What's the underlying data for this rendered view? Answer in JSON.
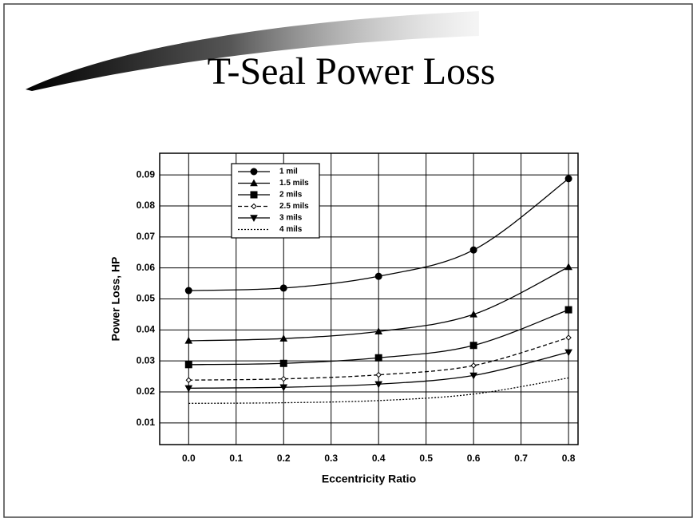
{
  "chart_data": {
    "type": "line",
    "title": "T-Seal Power Loss",
    "xlabel": "Eccentricity Ratio",
    "ylabel": "Power Loss, HP",
    "x": [
      0,
      0.2,
      0.4,
      0.6,
      0.8
    ],
    "series": [
      {
        "name": "1 mil",
        "color": "#000000",
        "marker": "circle",
        "dash": "solid",
        "values": [
          0.0527,
          0.0535,
          0.0573,
          0.0658,
          0.0888
        ]
      },
      {
        "name": "1.5 mils",
        "color": "#000000",
        "marker": "triangle",
        "dash": "solid",
        "values": [
          0.0365,
          0.0372,
          0.0395,
          0.045,
          0.0603
        ]
      },
      {
        "name": "2 mils",
        "color": "#000000",
        "marker": "square",
        "dash": "solid",
        "values": [
          0.0288,
          0.0292,
          0.031,
          0.035,
          0.0465
        ]
      },
      {
        "name": "2.5 mils",
        "color": "#000000",
        "marker": "diamond",
        "dash": "dashed",
        "values": [
          0.0238,
          0.0242,
          0.0255,
          0.0285,
          0.0375
        ]
      },
      {
        "name": "3 mils",
        "color": "#000000",
        "marker": "triangle-down",
        "dash": "solid",
        "values": [
          0.0212,
          0.0215,
          0.0225,
          0.0253,
          0.0328
        ]
      },
      {
        "name": "4 mils",
        "color": "#000000",
        "marker": "none",
        "dash": "dotted",
        "values": [
          0.0163,
          0.0165,
          0.0172,
          0.0193,
          0.0245
        ]
      }
    ],
    "xlim": [
      -0.061,
      0.82
    ],
    "ylim": [
      0.003,
      0.097
    ],
    "xticks": [
      {
        "value": 0,
        "label": "0.0"
      },
      0.1,
      0.2,
      0.3,
      0.4,
      0.5,
      0.6,
      0.7,
      0.8
    ],
    "yticks": [
      0.01,
      0.02,
      0.03,
      0.04,
      0.05,
      0.06,
      0.07,
      0.08,
      0.09
    ],
    "grid": true,
    "legend": "upper left"
  }
}
